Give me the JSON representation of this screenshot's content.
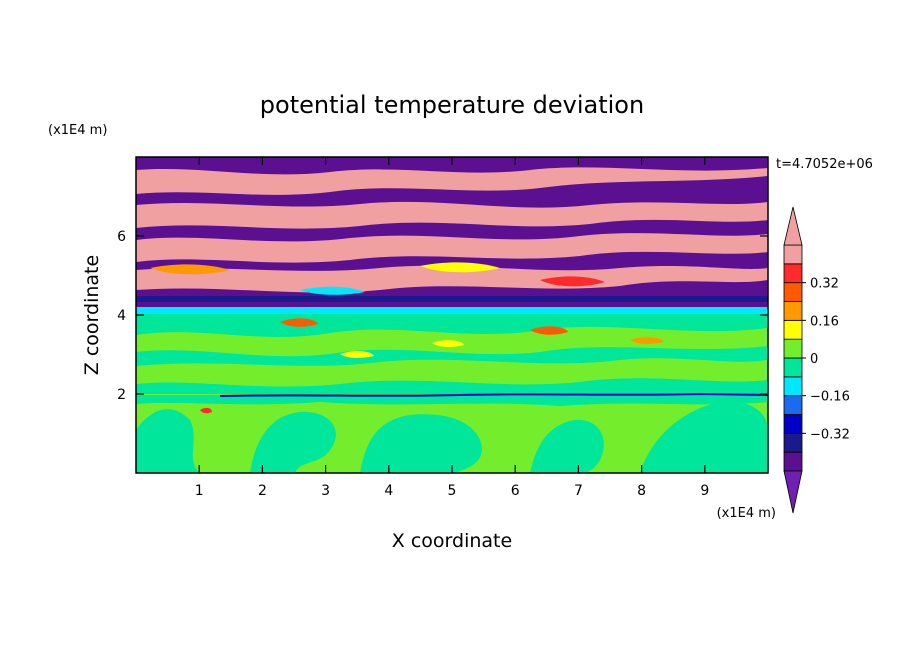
{
  "chart_data": {
    "type": "heatmap",
    "title": "potential temperature deviation",
    "xlabel": "X coordinate",
    "ylabel": "Z coordinate",
    "x_unit": "(x1E4 m)",
    "y_unit": "(x1E4 m)",
    "time_label": "t=4.7052e+06",
    "xlim": [
      0,
      10
    ],
    "ylim": [
      0,
      8
    ],
    "x_ticks": [
      "1",
      "2",
      "3",
      "4",
      "5",
      "6",
      "7",
      "8",
      "9"
    ],
    "y_ticks": [
      "2",
      "4",
      "6"
    ],
    "colorbar": {
      "levels": [
        -0.48,
        -0.4,
        -0.32,
        -0.24,
        -0.16,
        -0.08,
        0,
        0.08,
        0.16,
        0.24,
        0.32,
        0.4,
        0.48
      ],
      "tick_labels": [
        "0.32",
        "0.16",
        "0",
        "−0.16",
        "−0.32"
      ],
      "tick_values": [
        0.32,
        0.16,
        0,
        -0.16,
        -0.32
      ],
      "colors_low_to_high": [
        "#5a1090",
        "#1a1a8a",
        "#0000c8",
        "#1a6bf0",
        "#00e8ff",
        "#00e69a",
        "#74ee2c",
        "#ffff00",
        "#ff9900",
        "#ff5a00",
        "#ff2a2a",
        "#f0a0a0"
      ],
      "extend": "both",
      "under_color": "#7020b0",
      "over_color": "#f0a0a0"
    },
    "regions": [
      {
        "name": "upper layer",
        "z_range": [
          4.3,
          8
        ],
        "description": "alternating horizontal bands of purple and pink"
      },
      {
        "name": "middle layer",
        "z_range": [
          2,
          4.2
        ],
        "description": "mostly green and light green with scattered warm blobs"
      },
      {
        "name": "lower layer",
        "z_range": [
          0,
          2
        ],
        "description": "light green with green plume structures"
      }
    ]
  }
}
